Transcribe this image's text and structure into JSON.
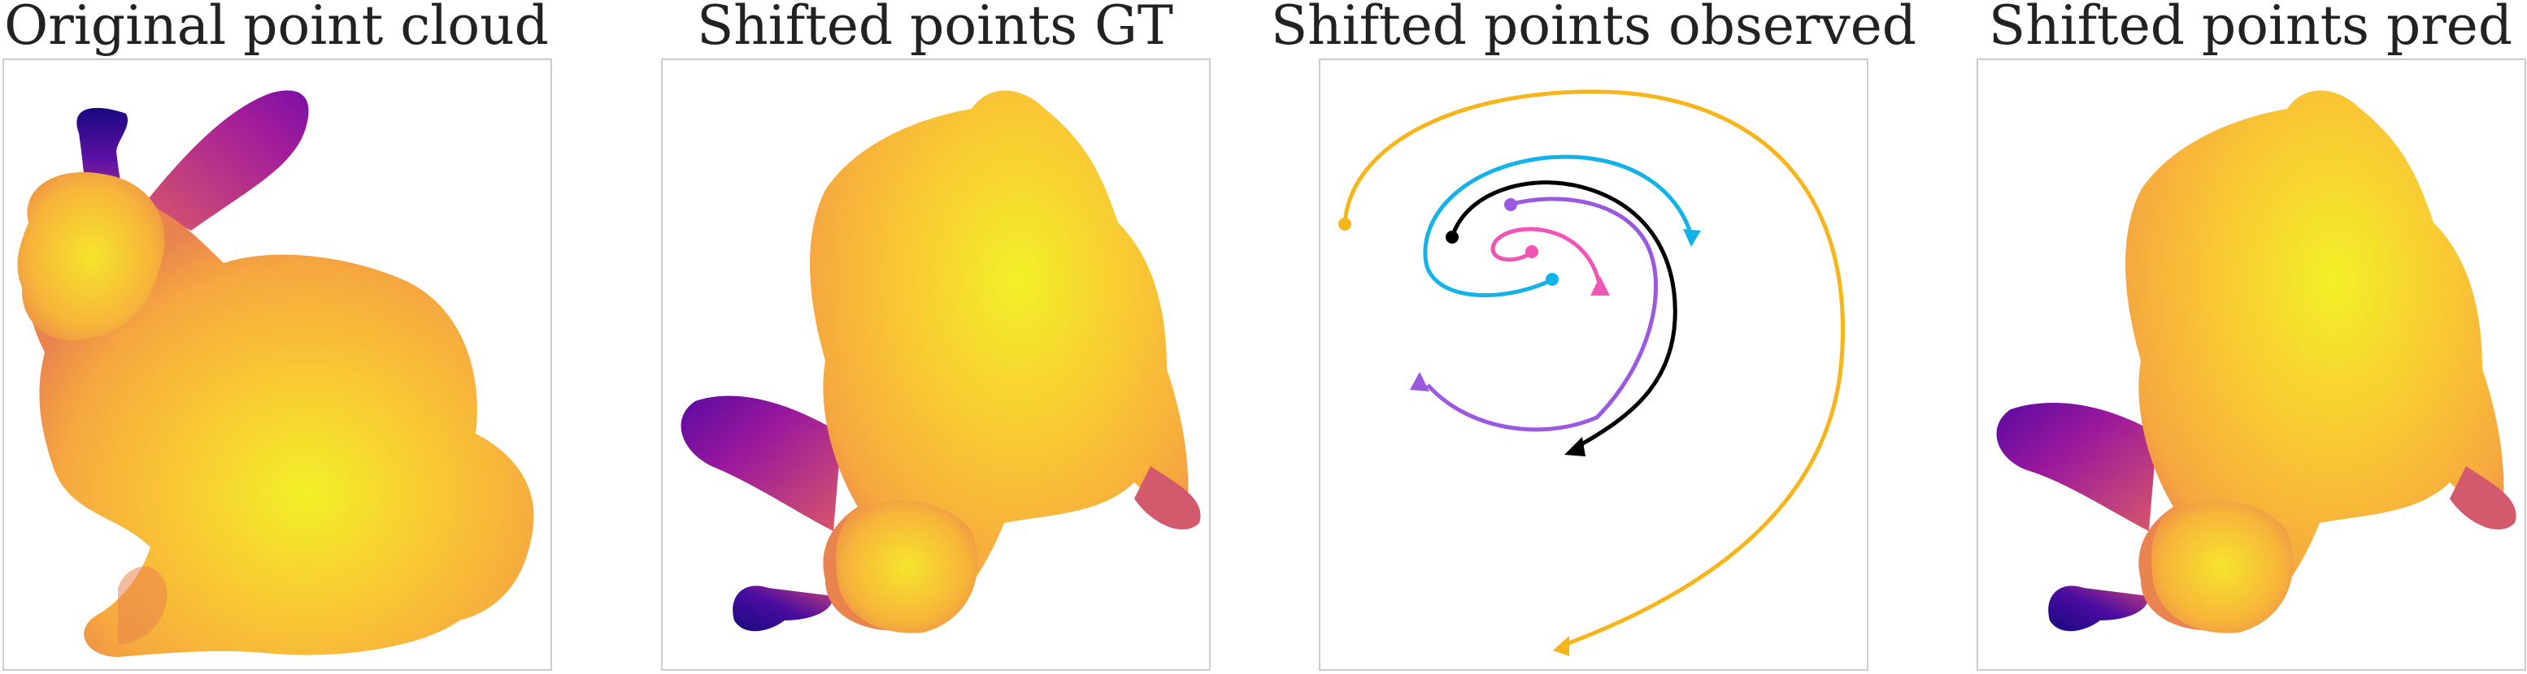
{
  "panels": [
    {
      "title": "Original point cloud"
    },
    {
      "title": "Shifted points GT"
    },
    {
      "title": "Shifted points observed"
    },
    {
      "title": "Shifted points pred"
    }
  ],
  "colors": {
    "frame": "#cccccc",
    "bunny_colormap": [
      "#1a0880",
      "#7b0fa6",
      "#c8437a",
      "#f08a4b",
      "#f7b43a",
      "#f3f028"
    ]
  },
  "chart_data": [
    {
      "type": "scatter",
      "title": "Original point cloud",
      "content": "bunny point cloud colored by depth (plasma colormap)",
      "axes": "hidden",
      "legend": "none"
    },
    {
      "type": "scatter",
      "title": "Shifted points GT",
      "content": "bunny point cloud rotated/shifted, colored by depth",
      "axes": "hidden",
      "legend": "none"
    },
    {
      "type": "line",
      "title": "Shifted points observed",
      "axes": "hidden",
      "legend": "none",
      "series": [
        {
          "color": "#f7b51c",
          "start_marker": "circle",
          "end_marker": "triangle"
        },
        {
          "color": "#13b3e8",
          "start_marker": "circle",
          "end_marker": "triangle"
        },
        {
          "color": "#000000",
          "start_marker": "circle",
          "end_marker": "triangle"
        },
        {
          "color": "#9b59e0",
          "start_marker": "circle",
          "end_marker": "triangle"
        },
        {
          "color": "#ee55b4",
          "start_marker": "circle",
          "end_marker": "triangle"
        }
      ]
    },
    {
      "type": "scatter",
      "title": "Shifted points pred",
      "content": "predicted shifted bunny point cloud, colored by depth",
      "axes": "hidden",
      "legend": "none"
    }
  ]
}
